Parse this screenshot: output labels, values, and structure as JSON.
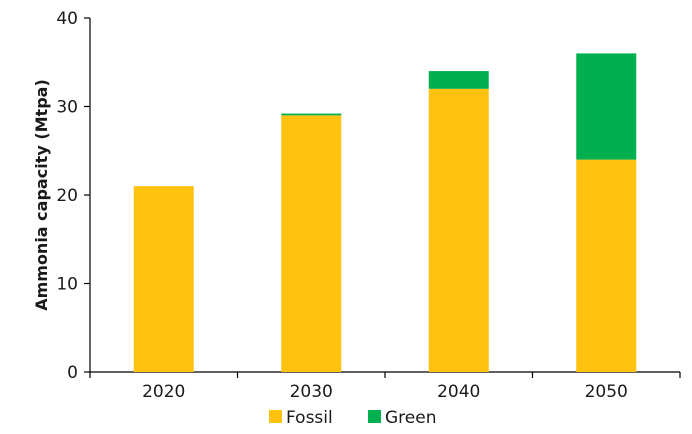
{
  "chart_data": {
    "type": "bar",
    "stacked": true,
    "title": "",
    "xlabel": "",
    "ylabel": "Ammonia capacity (Mtpa)",
    "categories": [
      "2020",
      "2030",
      "2040",
      "2050"
    ],
    "series": [
      {
        "name": "Fossil",
        "color": "#FFC20E",
        "values": [
          21,
          29,
          32,
          24
        ]
      },
      {
        "name": "Green",
        "color": "#00B050",
        "values": [
          0,
          0.2,
          2,
          12
        ]
      }
    ],
    "ylim": [
      0,
      40
    ],
    "yticks": [
      "0",
      "10",
      "20",
      "30",
      "40"
    ],
    "grid": false,
    "legend": "bottom"
  }
}
